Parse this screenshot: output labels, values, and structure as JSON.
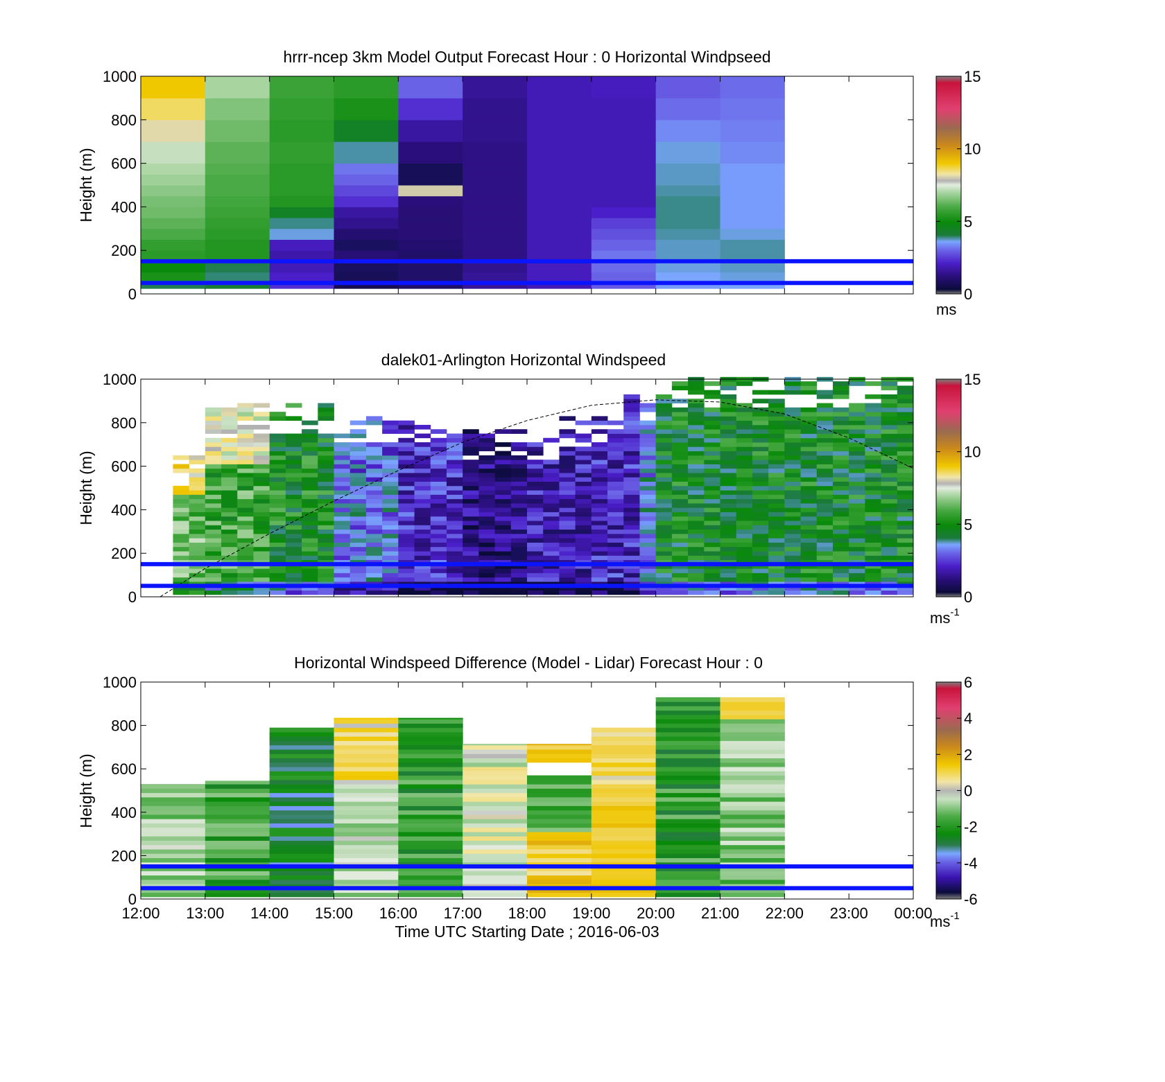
{
  "figure": {
    "xlabel": "Time UTC  Starting Date ; 2016-06-03",
    "x_ticks": [
      "12:00",
      "13:00",
      "14:00",
      "15:00",
      "16:00",
      "17:00",
      "18:00",
      "19:00",
      "20:00",
      "21:00",
      "22:00",
      "23:00",
      "00:00"
    ],
    "colors": {
      "reference_line": "#0a14ff",
      "dashed_curve": "#000000"
    }
  },
  "chart_data": [
    {
      "type": "heatmap",
      "title": "hrrr-ncep 3km Model Output   Forecast Hour : 0 Horizontal Windpseed",
      "ylabel": "Height (m)",
      "xlim": [
        "12:00",
        "00:00"
      ],
      "ylim": [
        0,
        1000
      ],
      "y_ticks": [
        0,
        200,
        400,
        600,
        800,
        1000
      ],
      "colorbar": {
        "min": 0,
        "max": 15,
        "ticks": [
          "0",
          "5",
          "10",
          "15"
        ],
        "unit": "ms",
        "unit_exp": ""
      },
      "reference_lines_m": [
        150,
        50
      ],
      "time_bins_hours": [
        12,
        13,
        14,
        15,
        16,
        17,
        18,
        19,
        20,
        21,
        22
      ],
      "height_bin_edges_m": [
        25,
        50,
        100,
        150,
        200,
        250,
        300,
        350,
        400,
        450,
        500,
        550,
        600,
        700,
        800,
        900,
        1000
      ],
      "values": [
        [
          4.0,
          4.2,
          2.0,
          0.3,
          0.6,
          1.3,
          1.6,
          2.5,
          3.2,
          3.3
        ],
        [
          5.0,
          3.8,
          1.8,
          0.4,
          0.7,
          1.3,
          1.7,
          2.6,
          3.3,
          3.4
        ],
        [
          4.8,
          4.0,
          1.6,
          0.5,
          0.7,
          1.2,
          1.7,
          2.7,
          3.4,
          3.5
        ],
        [
          5.2,
          5.1,
          1.5,
          0.9,
          0.7,
          1.1,
          1.6,
          2.8,
          3.5,
          3.6
        ],
        [
          5.3,
          5.1,
          1.7,
          0.5,
          0.8,
          1.1,
          1.6,
          2.6,
          3.5,
          3.6
        ],
        [
          5.6,
          5.2,
          3.4,
          0.8,
          0.9,
          1.1,
          1.6,
          2.4,
          3.6,
          3.4
        ],
        [
          5.8,
          5.3,
          3.7,
          1.2,
          0.9,
          1.1,
          1.6,
          2.2,
          3.7,
          3.2
        ],
        [
          6.0,
          5.4,
          4.4,
          1.4,
          0.9,
          1.1,
          1.6,
          1.8,
          3.7,
          3.2
        ],
        [
          6.1,
          5.5,
          5.1,
          2.0,
          1.0,
          1.1,
          1.6,
          1.6,
          3.7,
          3.2
        ],
        [
          6.3,
          5.6,
          5.2,
          2.3,
          7.9,
          1.1,
          1.6,
          1.6,
          3.6,
          3.2
        ],
        [
          6.5,
          5.6,
          5.2,
          2.6,
          0.4,
          1.1,
          1.6,
          1.6,
          3.5,
          3.2
        ],
        [
          6.7,
          5.7,
          5.2,
          2.8,
          0.4,
          1.1,
          1.6,
          1.6,
          3.5,
          3.2
        ],
        [
          7.0,
          5.8,
          5.3,
          3.6,
          1.0,
          1.1,
          1.6,
          1.6,
          3.4,
          3.0
        ],
        [
          8.0,
          6.0,
          5.2,
          4.4,
          1.4,
          1.2,
          1.6,
          1.6,
          3.0,
          2.9
        ],
        [
          8.6,
          6.2,
          5.3,
          5.0,
          2.0,
          1.2,
          1.6,
          1.6,
          2.7,
          2.8
        ],
        [
          9.3,
          6.6,
          5.4,
          5.2,
          2.6,
          1.3,
          1.6,
          1.7,
          2.5,
          2.7
        ]
      ]
    },
    {
      "type": "heatmap",
      "title": "dalek01-Arlington  Horizontal Windspeed",
      "ylabel": "Height (m)",
      "xlim": [
        "12:00",
        "00:00"
      ],
      "ylim": [
        0,
        1000
      ],
      "y_ticks": [
        0,
        200,
        400,
        600,
        800,
        1000
      ],
      "colorbar": {
        "min": 0,
        "max": 15,
        "ticks": [
          "0",
          "5",
          "10",
          "15"
        ],
        "unit": "ms",
        "unit_exp": "-1"
      },
      "reference_lines_m": [
        150,
        50
      ],
      "time_bin_width_hours": 0.25,
      "height_bin_width_m": 20,
      "height_range_m": [
        10,
        1000
      ],
      "profile_notes": "Observed lidar windspeed, ~15-minute time bins from 12:15 to 23:50 UTC; weak (<3 m/s) 15:30-19:30 aloft, 4-6 m/s elsewhere, sparse returns 750-1000 m.",
      "dashed_curve": {
        "x_hours": [
          12.3,
          13.0,
          14.0,
          15.0,
          16.0,
          17.0,
          18.0,
          19.0,
          20.0,
          21.0,
          22.0,
          23.0,
          24.0
        ],
        "y_m": [
          0,
          130,
          290,
          440,
          580,
          710,
          810,
          880,
          905,
          895,
          840,
          730,
          590
        ]
      }
    },
    {
      "type": "heatmap",
      "title": "Horizontal Windspeed Difference (Model - Lidar) Forecast Hour : 0",
      "ylabel": "Height (m)",
      "xlim": [
        "12:00",
        "00:00"
      ],
      "ylim": [
        0,
        1000
      ],
      "y_ticks": [
        0,
        200,
        400,
        600,
        800,
        1000
      ],
      "colorbar": {
        "min": -6,
        "max": 6,
        "ticks": [
          "-6",
          "-4",
          "-2",
          "0",
          "2",
          "4",
          "6"
        ],
        "unit": "ms",
        "unit_exp": "-1"
      },
      "reference_lines_m": [
        150,
        50
      ],
      "time_bins_hours": [
        12,
        13,
        14,
        15,
        16,
        17,
        18,
        19,
        20,
        21,
        22
      ],
      "column_top_m": [
        530,
        545,
        790,
        835,
        835,
        715,
        715,
        790,
        930,
        930
      ],
      "column_mean_difference": [
        -1.0,
        -2.0,
        -3.0,
        0.8,
        -2.2,
        -0.3,
        1.2,
        0.8,
        -2.2,
        -1.2
      ],
      "profile_notes": "Model minus lidar; mostly negative (-1 to -3 m/s) except 15:00-16:00 aloft and 17:00-20:00 where differences are near 0 to +2 m/s."
    }
  ]
}
